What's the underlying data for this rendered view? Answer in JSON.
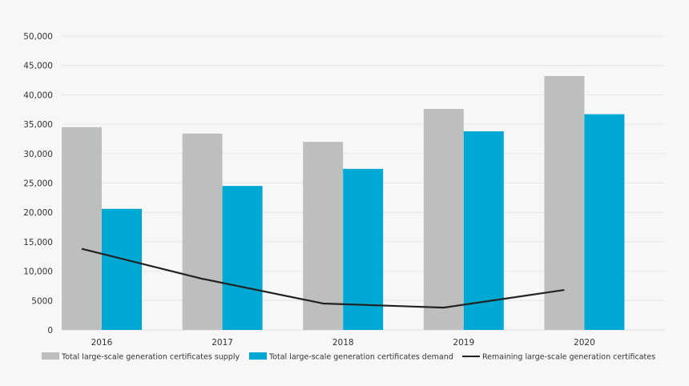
{
  "chart_data": {
    "type": "bar",
    "title": "",
    "xlabel": "",
    "ylabel": "",
    "categories": [
      "2016",
      "2017",
      "2018",
      "2019",
      "2020"
    ],
    "ylim": [
      0,
      50000
    ],
    "yticks": [
      0,
      5000,
      10000,
      15000,
      20000,
      25000,
      30000,
      35000,
      40000,
      45000,
      50000
    ],
    "ytick_labels": [
      "0",
      "5000",
      "10,000",
      "15,000",
      "20,000",
      "25,000",
      "30,000",
      "35,000",
      "40,000",
      "45,000",
      "50,000"
    ],
    "grid": true,
    "legend_position": "bottom",
    "series": [
      {
        "name": "Total large-scale generation certificates supply",
        "type": "bar",
        "color": "#bcbfbe",
        "values": [
          34500,
          33400,
          32000,
          37600,
          43200
        ]
      },
      {
        "name": "Total large-scale generation certificates demand",
        "type": "bar",
        "color": "#00a8d4",
        "values": [
          20600,
          24500,
          27400,
          33800,
          36700
        ]
      },
      {
        "name": "Remaining large-scale generation certificates",
        "type": "line",
        "color": "#222222",
        "values": [
          13800,
          8700,
          4500,
          3800,
          6800
        ]
      }
    ]
  }
}
